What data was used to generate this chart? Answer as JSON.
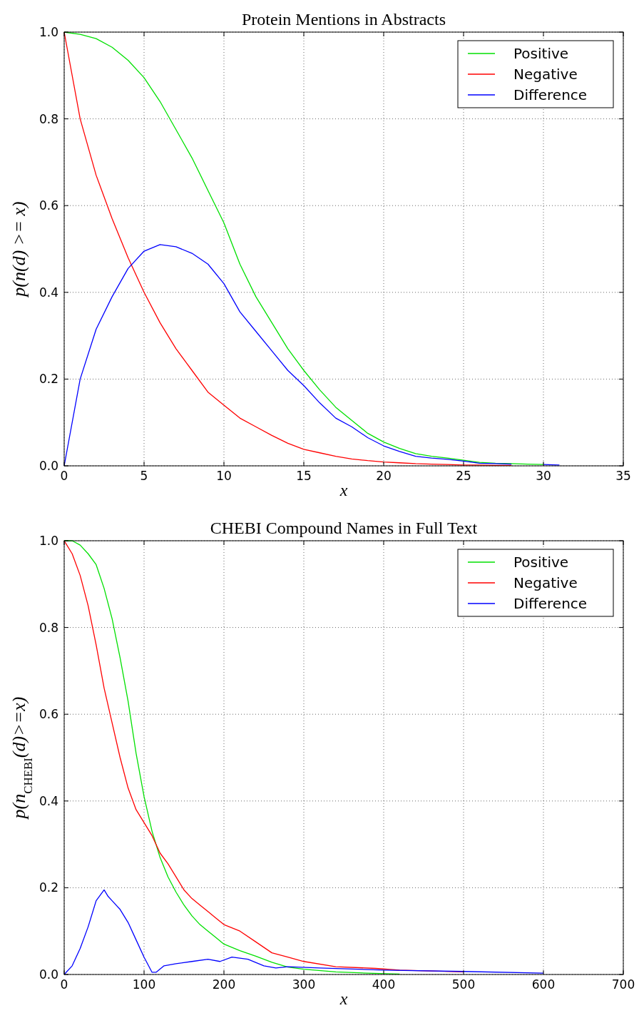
{
  "chart_data": [
    {
      "type": "line",
      "title": "Protein Mentions in Abstracts",
      "xlabel": "x",
      "ylabel": "p(n(d) >= x)",
      "x": [
        0,
        1,
        2,
        3,
        4,
        5,
        6,
        7,
        8,
        9,
        10,
        11,
        12,
        13,
        14,
        15,
        16,
        17,
        18,
        19,
        20,
        21,
        22,
        23,
        24,
        25,
        26,
        27,
        28,
        29,
        30,
        31
      ],
      "xlim": [
        0,
        35
      ],
      "xticks": [
        0,
        5,
        10,
        15,
        20,
        25,
        30,
        35
      ],
      "ylim": [
        0,
        1
      ],
      "yticks": [
        {
          "value": 0,
          "label": "0.0"
        },
        {
          "value": 0.2,
          "label": "0.2"
        },
        {
          "value": 0.4,
          "label": "0.4"
        },
        {
          "value": 0.6,
          "label": "0.6"
        },
        {
          "value": 0.8,
          "label": "0.8"
        },
        {
          "value": 1,
          "label": "1.0"
        }
      ],
      "grid": true,
      "legend": "top right",
      "series": [
        {
          "name": "Positive",
          "color": "#00e000",
          "values": [
            1.0,
            0.995,
            0.985,
            0.965,
            0.935,
            0.895,
            0.84,
            0.775,
            0.71,
            0.635,
            0.56,
            0.465,
            0.39,
            0.33,
            0.27,
            0.22,
            0.175,
            0.135,
            0.105,
            0.075,
            0.055,
            0.04,
            0.028,
            0.022,
            0.018,
            0.013,
            0.008,
            0.006,
            0.005,
            0.004,
            0.003,
            null
          ]
        },
        {
          "name": "Negative",
          "color": "#ff0000",
          "values": [
            1.0,
            0.8,
            0.67,
            0.57,
            0.48,
            0.4,
            0.33,
            0.27,
            0.22,
            0.17,
            0.14,
            0.11,
            0.09,
            0.07,
            0.052,
            0.038,
            0.03,
            0.022,
            0.016,
            0.012,
            0.009,
            0.007,
            0.005,
            0.004,
            0.003,
            0.002,
            0.002,
            0.001,
            0.001,
            null,
            null,
            null
          ]
        },
        {
          "name": "Difference",
          "color": "#0000ff",
          "values": [
            0,
            0.2,
            0.315,
            0.39,
            0.455,
            0.495,
            0.51,
            0.505,
            0.49,
            0.465,
            0.42,
            0.355,
            0.31,
            0.265,
            0.22,
            0.185,
            0.145,
            0.11,
            0.09,
            0.065,
            0.046,
            0.033,
            0.022,
            0.018,
            0.015,
            0.011,
            0.006,
            0.005,
            0.004,
            null,
            0.003,
            0.002
          ]
        }
      ]
    },
    {
      "type": "line",
      "title": "CHEBI Compound Names in Full Text",
      "xlabel": "x",
      "ylabel": "p(n$_{CHEBI}$(d)>=x)",
      "xlim": [
        0,
        700
      ],
      "xticks": [
        0,
        100,
        200,
        300,
        400,
        500,
        600,
        700
      ],
      "ylim": [
        0,
        1
      ],
      "yticks": [
        {
          "value": 0,
          "label": "0.0"
        },
        {
          "value": 0.2,
          "label": "0.2"
        },
        {
          "value": 0.4,
          "label": "0.4"
        },
        {
          "value": 0.6,
          "label": "0.6"
        },
        {
          "value": 0.8,
          "label": "0.8"
        },
        {
          "value": 1,
          "label": "1.0"
        }
      ],
      "grid": true,
      "legend": "top right",
      "series": [
        {
          "name": "Positive",
          "color": "#00e000",
          "x": [
            0,
            10,
            20,
            30,
            40,
            50,
            60,
            70,
            80,
            90,
            100,
            110,
            120,
            130,
            140,
            150,
            160,
            170,
            180,
            190,
            200,
            220,
            240,
            260,
            280,
            300,
            340,
            380,
            420
          ],
          "values": [
            1,
            1,
            0.99,
            0.97,
            0.945,
            0.89,
            0.82,
            0.73,
            0.63,
            0.51,
            0.41,
            0.33,
            0.27,
            0.225,
            0.19,
            0.16,
            0.135,
            0.115,
            0.1,
            0.085,
            0.07,
            0.055,
            0.042,
            0.028,
            0.017,
            0.012,
            0.006,
            0.003,
            0.001
          ]
        },
        {
          "name": "Negative",
          "color": "#ff0000",
          "x": [
            0,
            10,
            20,
            30,
            40,
            50,
            60,
            70,
            80,
            90,
            100,
            110,
            120,
            130,
            140,
            150,
            160,
            170,
            180,
            190,
            200,
            220,
            240,
            260,
            280,
            300,
            340,
            390,
            420,
            500
          ],
          "values": [
            1,
            0.97,
            0.92,
            0.85,
            0.76,
            0.66,
            0.58,
            0.5,
            0.43,
            0.38,
            0.35,
            0.32,
            0.28,
            0.255,
            0.225,
            0.195,
            0.175,
            0.16,
            0.145,
            0.13,
            0.115,
            0.1,
            0.075,
            0.05,
            0.04,
            0.03,
            0.018,
            0.014,
            0.01,
            0.006
          ]
        },
        {
          "name": "Difference",
          "color": "#0000ff",
          "x": [
            0,
            10,
            20,
            30,
            40,
            50,
            55,
            60,
            70,
            80,
            90,
            100,
            110,
            115,
            125,
            140,
            160,
            180,
            195,
            210,
            230,
            250,
            265,
            280,
            320,
            400,
            500,
            600
          ],
          "values": [
            0,
            0.02,
            0.06,
            0.11,
            0.17,
            0.195,
            0.18,
            0.17,
            0.15,
            0.12,
            0.08,
            0.04,
            0.005,
            0.005,
            0.02,
            0.025,
            0.03,
            0.035,
            0.03,
            0.04,
            0.035,
            0.02,
            0.015,
            0.018,
            0.015,
            0.01,
            0.007,
            0.003
          ]
        }
      ]
    }
  ]
}
